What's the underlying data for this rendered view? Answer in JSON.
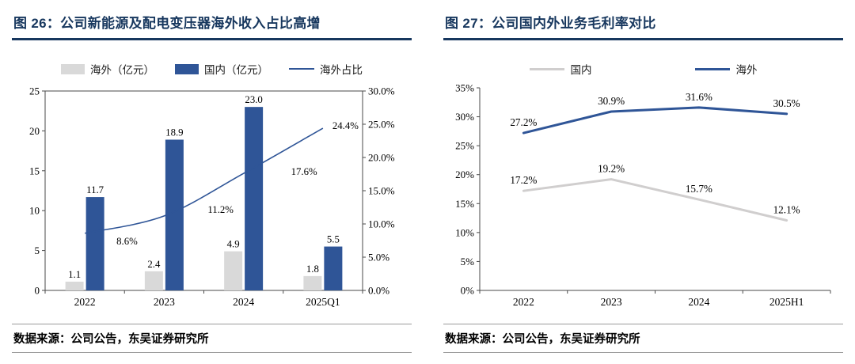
{
  "colors": {
    "navy_title": "#17375E",
    "blue": "#2F5597",
    "gray_bar": "#D9D9D9",
    "gray_line": "#D0CECE",
    "axis": "#4a4a4a"
  },
  "figure26": {
    "title": "图 26：公司新能源及配电变压器海外收入占比高增",
    "legend": [
      {
        "label": "海外（亿元）"
      },
      {
        "label": "国内（亿元）"
      },
      {
        "label": "海外占比"
      }
    ],
    "source": "数据来源：公司公告，东吴证券研究所"
  },
  "figure27": {
    "title": "图 27：公司国内外业务毛利率对比",
    "legend": [
      {
        "label": "国内"
      },
      {
        "label": "海外"
      }
    ],
    "source": "数据来源：公司公告，东吴证券研究所"
  },
  "chart_data": [
    {
      "type": "bar",
      "subtype": "bar+line-dual-axis",
      "title": "图 26：公司新能源及配电变压器海外收入占比高增",
      "categories": [
        "2022",
        "2023",
        "2024",
        "2025Q1"
      ],
      "series": [
        {
          "name": "海外（亿元）",
          "type": "bar",
          "axis": "left",
          "color": "#D9D9D9",
          "values": [
            1.1,
            2.4,
            4.9,
            1.8
          ]
        },
        {
          "name": "国内（亿元）",
          "type": "bar",
          "axis": "left",
          "color": "#2F5597",
          "values": [
            11.7,
            18.9,
            23.0,
            5.5
          ]
        },
        {
          "name": "海外占比",
          "type": "line",
          "axis": "right",
          "color": "#2F5597",
          "unit": "%",
          "values": [
            8.6,
            11.2,
            17.6,
            24.4
          ]
        }
      ],
      "left_axis": {
        "min": 0,
        "max": 25,
        "step": 5,
        "decimals": 0,
        "suffix": ""
      },
      "right_axis": {
        "min": 0,
        "max": 30,
        "step": 5,
        "decimals": 1,
        "suffix": "%"
      },
      "grid": false,
      "legend_position": "top"
    },
    {
      "type": "line",
      "title": "图 27：公司国内外业务毛利率对比",
      "categories": [
        "2022",
        "2023",
        "2024",
        "2025H1"
      ],
      "series": [
        {
          "name": "国内",
          "color": "#D0CECE",
          "unit": "%",
          "values": [
            17.2,
            19.2,
            15.7,
            12.1
          ]
        },
        {
          "name": "海外",
          "color": "#2F5597",
          "unit": "%",
          "values": [
            27.2,
            30.9,
            31.6,
            30.5
          ]
        }
      ],
      "y_axis": {
        "min": 0,
        "max": 35,
        "step": 5,
        "decimals": 0,
        "suffix": "%"
      },
      "grid": false,
      "legend_position": "top"
    }
  ]
}
